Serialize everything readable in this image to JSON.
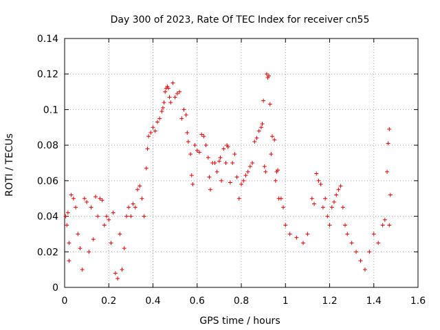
{
  "chart_data": {
    "type": "scatter",
    "title": "Day 300 of 2023, Rate Of TEC Index for receiver cn55",
    "xlabel": "GPS time / hours",
    "ylabel": "ROTI / TECUs",
    "xlim": [
      0,
      1.6
    ],
    "ylim": [
      0,
      0.14
    ],
    "xticks": [
      "0",
      "0.2",
      "0.4",
      "0.6",
      "0.8",
      "1",
      "1.2",
      "1.4",
      "1.6"
    ],
    "yticks": [
      "0",
      "0.02",
      "0.04",
      "0.06",
      "0.08",
      "0.1",
      "0.12",
      "0.14"
    ],
    "grid": true,
    "marker": "+",
    "series_color": "#e00000",
    "series": [
      {
        "name": "ROTI",
        "points": [
          [
            0.005,
            0.04
          ],
          [
            0.01,
            0.035
          ],
          [
            0.015,
            0.042
          ],
          [
            0.02,
            0.025
          ],
          [
            0.02,
            0.015
          ],
          [
            0.03,
            0.052
          ],
          [
            0.04,
            0.05
          ],
          [
            0.05,
            0.045
          ],
          [
            0.06,
            0.03
          ],
          [
            0.07,
            0.022
          ],
          [
            0.08,
            0.01
          ],
          [
            0.09,
            0.05
          ],
          [
            0.1,
            0.048
          ],
          [
            0.11,
            0.02
          ],
          [
            0.12,
            0.045
          ],
          [
            0.13,
            0.027
          ],
          [
            0.14,
            0.051
          ],
          [
            0.15,
            0.04
          ],
          [
            0.16,
            0.05
          ],
          [
            0.17,
            0.049
          ],
          [
            0.18,
            0.035
          ],
          [
            0.19,
            0.04
          ],
          [
            0.2,
            0.038
          ],
          [
            0.21,
            0.025
          ],
          [
            0.22,
            0.042
          ],
          [
            0.23,
            0.008
          ],
          [
            0.24,
            0.005
          ],
          [
            0.25,
            0.03
          ],
          [
            0.26,
            0.01
          ],
          [
            0.27,
            0.022
          ],
          [
            0.28,
            0.04
          ],
          [
            0.29,
            0.045
          ],
          [
            0.3,
            0.04
          ],
          [
            0.31,
            0.047
          ],
          [
            0.32,
            0.045
          ],
          [
            0.33,
            0.055
          ],
          [
            0.34,
            0.057
          ],
          [
            0.35,
            0.05
          ],
          [
            0.36,
            0.04
          ],
          [
            0.37,
            0.067
          ],
          [
            0.375,
            0.078
          ],
          [
            0.38,
            0.085
          ],
          [
            0.39,
            0.087
          ],
          [
            0.4,
            0.09
          ],
          [
            0.41,
            0.088
          ],
          [
            0.42,
            0.093
          ],
          [
            0.43,
            0.095
          ],
          [
            0.44,
            0.099
          ],
          [
            0.445,
            0.101
          ],
          [
            0.45,
            0.104
          ],
          [
            0.455,
            0.11
          ],
          [
            0.46,
            0.112
          ],
          [
            0.465,
            0.113
          ],
          [
            0.47,
            0.112
          ],
          [
            0.475,
            0.107
          ],
          [
            0.48,
            0.104
          ],
          [
            0.49,
            0.115
          ],
          [
            0.5,
            0.107
          ],
          [
            0.51,
            0.109
          ],
          [
            0.52,
            0.11
          ],
          [
            0.53,
            0.095
          ],
          [
            0.54,
            0.1
          ],
          [
            0.55,
            0.097
          ],
          [
            0.555,
            0.087
          ],
          [
            0.56,
            0.082
          ],
          [
            0.57,
            0.075
          ],
          [
            0.575,
            0.063
          ],
          [
            0.58,
            0.058
          ],
          [
            0.59,
            0.08
          ],
          [
            0.6,
            0.077
          ],
          [
            0.61,
            0.076
          ],
          [
            0.62,
            0.086
          ],
          [
            0.63,
            0.085
          ],
          [
            0.64,
            0.08
          ],
          [
            0.65,
            0.073
          ],
          [
            0.655,
            0.062
          ],
          [
            0.66,
            0.055
          ],
          [
            0.67,
            0.07
          ],
          [
            0.68,
            0.07
          ],
          [
            0.69,
            0.065
          ],
          [
            0.7,
            0.071
          ],
          [
            0.705,
            0.073
          ],
          [
            0.71,
            0.06
          ],
          [
            0.72,
            0.078
          ],
          [
            0.73,
            0.07
          ],
          [
            0.735,
            0.08
          ],
          [
            0.74,
            0.079
          ],
          [
            0.75,
            0.059
          ],
          [
            0.76,
            0.07
          ],
          [
            0.77,
            0.075
          ],
          [
            0.78,
            0.062
          ],
          [
            0.79,
            0.05
          ],
          [
            0.8,
            0.058
          ],
          [
            0.81,
            0.06
          ],
          [
            0.82,
            0.063
          ],
          [
            0.83,
            0.065
          ],
          [
            0.84,
            0.068
          ],
          [
            0.85,
            0.07
          ],
          [
            0.86,
            0.082
          ],
          [
            0.87,
            0.084
          ],
          [
            0.88,
            0.088
          ],
          [
            0.89,
            0.09
          ],
          [
            0.895,
            0.092
          ],
          [
            0.9,
            0.105
          ],
          [
            0.905,
            0.068
          ],
          [
            0.91,
            0.065
          ],
          [
            0.915,
            0.12
          ],
          [
            0.92,
            0.118
          ],
          [
            0.925,
            0.119
          ],
          [
            0.93,
            0.103
          ],
          [
            0.935,
            0.075
          ],
          [
            0.94,
            0.085
          ],
          [
            0.95,
            0.083
          ],
          [
            0.955,
            0.06
          ],
          [
            0.96,
            0.065
          ],
          [
            0.965,
            0.066
          ],
          [
            0.97,
            0.05
          ],
          [
            0.98,
            0.05
          ],
          [
            0.99,
            0.045
          ],
          [
            1.0,
            0.035
          ],
          [
            1.02,
            0.03
          ],
          [
            1.05,
            0.028
          ],
          [
            1.08,
            0.025
          ],
          [
            1.1,
            0.03
          ],
          [
            1.12,
            0.05
          ],
          [
            1.13,
            0.047
          ],
          [
            1.14,
            0.064
          ],
          [
            1.15,
            0.06
          ],
          [
            1.16,
            0.058
          ],
          [
            1.17,
            0.045
          ],
          [
            1.18,
            0.05
          ],
          [
            1.19,
            0.04
          ],
          [
            1.2,
            0.035
          ],
          [
            1.21,
            0.045
          ],
          [
            1.22,
            0.048
          ],
          [
            1.23,
            0.052
          ],
          [
            1.24,
            0.055
          ],
          [
            1.25,
            0.057
          ],
          [
            1.26,
            0.045
          ],
          [
            1.27,
            0.035
          ],
          [
            1.28,
            0.03
          ],
          [
            1.3,
            0.025
          ],
          [
            1.32,
            0.02
          ],
          [
            1.34,
            0.015
          ],
          [
            1.36,
            0.01
          ],
          [
            1.38,
            0.02
          ],
          [
            1.4,
            0.03
          ],
          [
            1.42,
            0.025
          ],
          [
            1.44,
            0.035
          ],
          [
            1.45,
            0.038
          ],
          [
            1.46,
            0.065
          ],
          [
            1.465,
            0.081
          ],
          [
            1.47,
            0.089
          ],
          [
            1.475,
            0.052
          ],
          [
            1.47,
            0.035
          ]
        ]
      }
    ]
  }
}
